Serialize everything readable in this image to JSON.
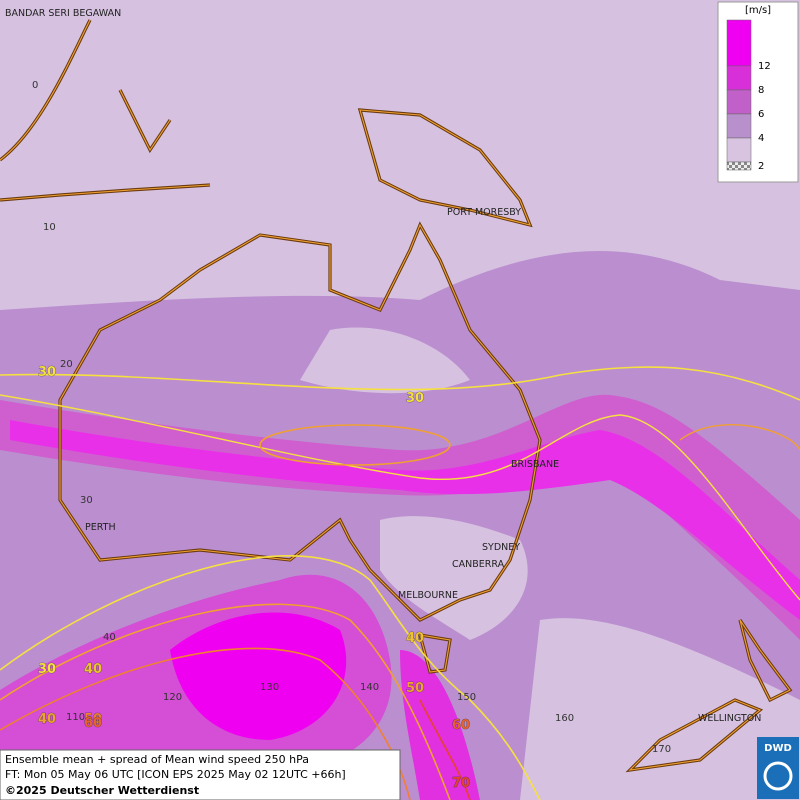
{
  "cities": [
    "BANDAR SERI BEGAWAN",
    "PORT MORESBY",
    "BRISBANE",
    "PERTH",
    "SYDNEY",
    "CANBERRA",
    "MELBOURNE",
    "WELLINGTON"
  ],
  "latitudes": [
    0,
    10,
    20,
    30,
    40
  ],
  "longitudes": [
    110,
    120,
    130,
    140,
    150,
    160,
    170
  ],
  "contour_labels": [
    30,
    30,
    30,
    40,
    40,
    40,
    50,
    50,
    60,
    60,
    70
  ],
  "legend": {
    "title": "[m/s]",
    "ticks": [
      12,
      8,
      6,
      4,
      2
    ],
    "colors": [
      "#f000f0",
      "#d830d8",
      "#c060c8",
      "#b890cc",
      "#d8c4e0",
      "#f4f0f6"
    ]
  },
  "footer": {
    "line1": "Ensemble mean + spread of Mean wind speed 250 hPa",
    "line2": "FT: Mon 05 May 06 UTC [ICON EPS 2025 May 02 12UTC +66h]",
    "line3": "©2025 Deutscher Wetterdienst",
    "logo": "DWD"
  }
}
